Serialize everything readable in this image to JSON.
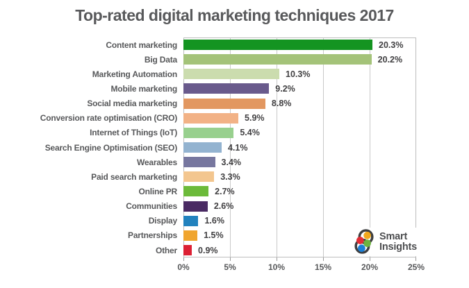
{
  "title": "Top-rated digital marketing techniques 2017",
  "chart_data": {
    "type": "bar",
    "orientation": "horizontal",
    "title": "Top-rated digital marketing techniques 2017",
    "categories": [
      "Content marketing",
      "Big Data",
      "Marketing Automation",
      "Mobile marketing",
      "Social media marketing",
      "Conversion rate optimisation (CRO)",
      "Internet of Things (IoT)",
      "Search Engine Optimisation (SEO)",
      "Wearables",
      "Paid search marketing",
      "Online PR",
      "Communities",
      "Display",
      "Partnerships",
      "Other"
    ],
    "values": [
      20.3,
      20.2,
      10.3,
      9.2,
      8.8,
      5.9,
      5.4,
      4.1,
      3.4,
      3.3,
      2.7,
      2.6,
      1.6,
      1.5,
      0.9
    ],
    "value_labels": [
      "20.3%",
      "20.2%",
      "10.3%",
      "9.2%",
      "8.8%",
      "5.9%",
      "5.4%",
      "4.1%",
      "3.4%",
      "3.3%",
      "2.7%",
      "2.6%",
      "1.6%",
      "1.5%",
      "0.9%"
    ],
    "bar_colors": [
      "#149421",
      "#a4c379",
      "#cbdcae",
      "#695a8c",
      "#e29760",
      "#f2b286",
      "#98d08e",
      "#93b3d0",
      "#77779f",
      "#f3c68f",
      "#6cba3a",
      "#4a2a63",
      "#2282be",
      "#f0a52f",
      "#dc2033"
    ],
    "xlim": [
      0,
      25
    ],
    "x_tick_labels": [
      "0%",
      "5%",
      "10%",
      "15%",
      "20%",
      "25%"
    ],
    "grid": "vertical gridlines every 5%, boxed plot area",
    "legend": "none",
    "value_label_position": "right of bar end"
  },
  "logo": {
    "line1": "Smart",
    "line2": "Insights",
    "outline_color": "#3f4041",
    "dot_colors": {
      "top": "#f2a81d",
      "left": "#e22d35",
      "right": "#6db33f",
      "bottom": "#1c7fd5"
    }
  },
  "colors": {
    "title_text": "#58595b",
    "axis_text": "#57585a",
    "value_text": "#414042",
    "grid": "#c9c9c9",
    "background": "#ffffff"
  }
}
